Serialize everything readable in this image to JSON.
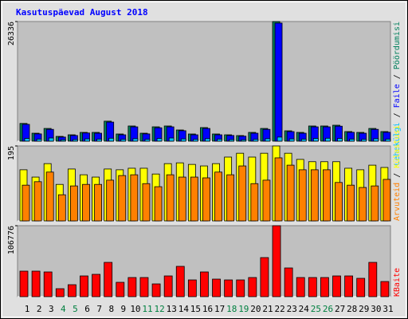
{
  "chart_data": [
    {
      "type": "bar",
      "title": "Kasutuspäevad August 2018",
      "legend_separator": " / ",
      "ylim": [
        0,
        26336
      ],
      "yticks": [
        26336
      ],
      "series": [
        {
          "name": "Lehekülgi",
          "color": "#00c0ff",
          "values": [
            600,
            450,
            700,
            300,
            350,
            500,
            450,
            650,
            400,
            550,
            400,
            600,
            700,
            500,
            400,
            550,
            450,
            350,
            300,
            400,
            550,
            900,
            500,
            450,
            600,
            650,
            600,
            450,
            400,
            550,
            450
          ]
        },
        {
          "name": "Faile",
          "color": "#0000ff",
          "values": [
            3700,
            1600,
            2600,
            900,
            1250,
            1800,
            1750,
            4200,
            1400,
            3150,
            1600,
            2950,
            3150,
            2300,
            1400,
            2800,
            1400,
            1250,
            1100,
            1750,
            2600,
            26000,
            2100,
            1750,
            3150,
            3150,
            3300,
            1950,
            1750,
            2600,
            1950
          ]
        },
        {
          "name": "Pöördumisi",
          "color": "#00805c",
          "values": [
            3900,
            1750,
            2800,
            1050,
            1400,
            1930,
            1930,
            4400,
            1580,
            3340,
            1750,
            3160,
            3340,
            2460,
            1580,
            2990,
            1580,
            1400,
            1230,
            1930,
            2800,
            26336,
            2280,
            1930,
            3340,
            3340,
            3510,
            2110,
            1930,
            2800,
            2110
          ]
        }
      ]
    },
    {
      "type": "bar",
      "legend_separator": " / ",
      "ylim": [
        0,
        195
      ],
      "yticks": [
        195
      ],
      "series": [
        {
          "name": "Arvuteid",
          "color": "#ff8000",
          "values": [
            93,
            102,
            127,
            68,
            91,
            95,
            95,
            106,
            118,
            120,
            97,
            89,
            120,
            114,
            114,
            112,
            127,
            120,
            143,
            97,
            106,
            164,
            145,
            133,
            133,
            133,
            100,
            93,
            87,
            91,
            108
          ]
        },
        {
          "name": "Külastusi",
          "color": "#ffff00",
          "values": [
            133,
            114,
            149,
            95,
            135,
            120,
            114,
            135,
            133,
            137,
            137,
            122,
            149,
            151,
            147,
            143,
            149,
            166,
            176,
            166,
            176,
            195,
            176,
            160,
            154,
            154,
            154,
            137,
            133,
            145,
            139
          ]
        }
      ]
    },
    {
      "type": "bar",
      "legend_separator": " / ",
      "ylim": [
        0,
        106776
      ],
      "yticks": [
        106776
      ],
      "categories": [
        "1",
        "2",
        "3",
        "4",
        "5",
        "6",
        "7",
        "8",
        "9",
        "10",
        "11",
        "12",
        "13",
        "14",
        "15",
        "16",
        "17",
        "18",
        "19",
        "20",
        "21",
        "22",
        "23",
        "24",
        "25",
        "26",
        "27",
        "28",
        "29",
        "30",
        "31"
      ],
      "category_colors": [
        "#000000",
        "#000000",
        "#000000",
        "#008040",
        "#008040",
        "#000000",
        "#000000",
        "#000000",
        "#000000",
        "#000000",
        "#008040",
        "#008040",
        "#000000",
        "#000000",
        "#000000",
        "#000000",
        "#000000",
        "#008040",
        "#008040",
        "#000000",
        "#000000",
        "#000000",
        "#000000",
        "#000000",
        "#008040",
        "#008040",
        "#000000",
        "#000000",
        "#000000",
        "#000000",
        "#000000"
      ],
      "series": [
        {
          "name": "KBaite",
          "color": "#ff0000",
          "values": [
            38400,
            38400,
            37200,
            12000,
            18000,
            31200,
            33600,
            51600,
            21600,
            28800,
            28800,
            19200,
            31200,
            45600,
            25200,
            37200,
            26400,
            25200,
            25200,
            28800,
            58800,
            106776,
            43200,
            28800,
            28800,
            28800,
            31200,
            31200,
            27600,
            51600,
            22800
          ]
        }
      ]
    }
  ]
}
